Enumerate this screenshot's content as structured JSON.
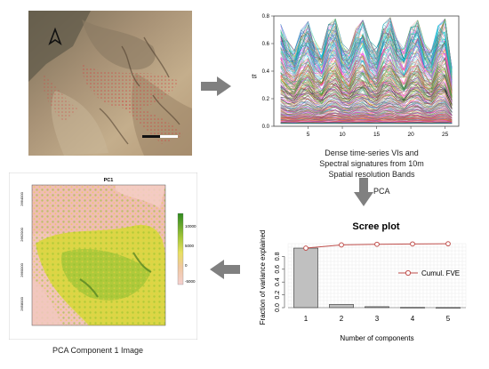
{
  "satellite_panel": {
    "north_symbol": "north-arrow"
  },
  "timeseries_chart": {
    "caption_lines": [
      "Dense time-series VIs and",
      "Spectral signatures from 10m",
      "Spatial resolution Bands"
    ],
    "ylabel": "ts",
    "x_ticks": [
      "5",
      "10",
      "15",
      "20",
      "25"
    ],
    "y_ticks": [
      "0.0",
      "0.2",
      "0.4",
      "0.6",
      "0.8"
    ]
  },
  "pca_step": {
    "label": "PCA"
  },
  "scree_plot": {
    "title": "Scree plot",
    "ylabel": "Fraction of variance explained",
    "xlabel": "Number of components",
    "legend_label": "Cumul. FVE",
    "x_ticks": [
      "1",
      "2",
      "3",
      "4",
      "5"
    ],
    "y_ticks": [
      "0.0",
      "0.2",
      "0.4",
      "0.6",
      "0.8"
    ]
  },
  "pca_map": {
    "title": "PC1",
    "caption": "PCA Component 1 Image",
    "y_ticks": [
      "2664000",
      "2658000",
      "2660000",
      "2662000"
    ],
    "colorbar_ticks": [
      "10000",
      "5000",
      "0",
      "-5000"
    ]
  },
  "colors": {
    "arrow": "#808080",
    "bar_fill": "#c0c0c0",
    "cumulative_line": "#c0504d",
    "map_high": "#5aa02c",
    "map_mid": "#d8d830",
    "map_low": "#f0b8b0"
  },
  "chart_data": [
    {
      "type": "line",
      "x": [
        1,
        2,
        3,
        4,
        5,
        6,
        7,
        8,
        9,
        10,
        11,
        12,
        13,
        14,
        15,
        16,
        17,
        18,
        19,
        20,
        21,
        22,
        23,
        24,
        25,
        26
      ],
      "xlim": [
        0,
        27
      ],
      "ylim": [
        0,
        0.8
      ],
      "ylabel": "ts",
      "series_count": 300,
      "envelope_upper": [
        0.74,
        0.62,
        0.55,
        0.7,
        0.76,
        0.62,
        0.56,
        0.74,
        0.78,
        0.6,
        0.55,
        0.71,
        0.77,
        0.62,
        0.57,
        0.74,
        0.79,
        0.63,
        0.56,
        0.72,
        0.77,
        0.6,
        0.55,
        0.73,
        0.78,
        0.42
      ],
      "envelope_lower": [
        0.02,
        0.02,
        0.02,
        0.02,
        0.02,
        0.02,
        0.02,
        0.02,
        0.02,
        0.02,
        0.02,
        0.02,
        0.02,
        0.02,
        0.02,
        0.02,
        0.02,
        0.02,
        0.02,
        0.02,
        0.02,
        0.02,
        0.02,
        0.02,
        0.02,
        0.02
      ]
    },
    {
      "type": "bar",
      "title": "Scree plot",
      "categories": [
        "1",
        "2",
        "3",
        "4",
        "5"
      ],
      "values": [
        0.93,
        0.05,
        0.015,
        0.005,
        0.003
      ],
      "cumulative": [
        0.93,
        0.98,
        0.99,
        0.995,
        0.998
      ],
      "xlabel": "Number of components",
      "ylabel": "Fraction of variance explained",
      "ylim": [
        0,
        1.0
      ],
      "legend": "Cumul. FVE",
      "legend_position": "right"
    }
  ]
}
